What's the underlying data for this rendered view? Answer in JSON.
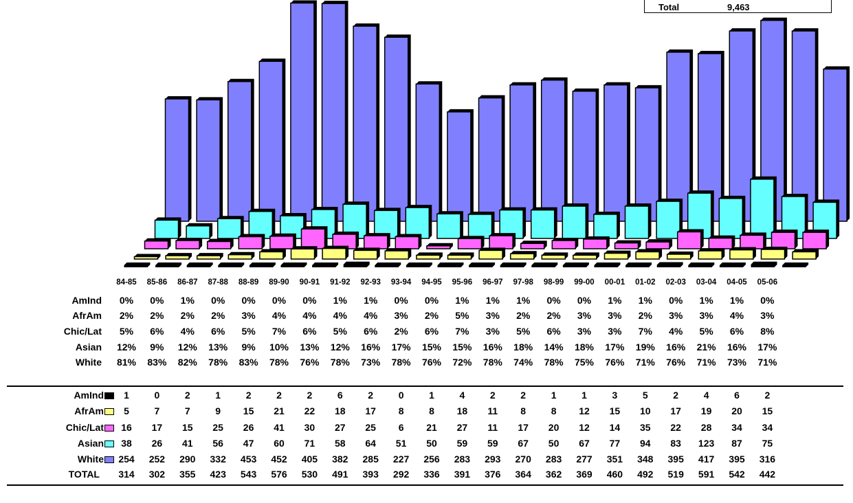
{
  "legend_box": {
    "label": "Total",
    "value": "9,463"
  },
  "colors": {
    "AmInd": "#000000",
    "AfrAm": "#ffff80",
    "Chic/Lat": "#ff66ff",
    "Asian": "#66ffff",
    "White": "#8080ff"
  },
  "chart_data": {
    "type": "bar",
    "categories": [
      "84-85",
      "85-86",
      "86-87",
      "87-88",
      "88-89",
      "89-90",
      "90-91",
      "91-92",
      "92-93",
      "93-94",
      "94-95",
      "95-96",
      "96-97",
      "97-98",
      "98-99",
      "99-00",
      "00-01",
      "01-02",
      "02-03",
      "03-04",
      "04-05",
      "05-06"
    ],
    "series": [
      {
        "name": "AmInd",
        "values": [
          1,
          0,
          2,
          1,
          2,
          2,
          2,
          6,
          2,
          0,
          1,
          4,
          2,
          2,
          1,
          1,
          3,
          5,
          2,
          4,
          6,
          2
        ]
      },
      {
        "name": "AfrAm",
        "values": [
          5,
          7,
          7,
          9,
          15,
          21,
          22,
          18,
          17,
          8,
          8,
          18,
          11,
          8,
          8,
          12,
          15,
          10,
          17,
          19,
          20,
          15
        ]
      },
      {
        "name": "Chic/Lat",
        "values": [
          16,
          17,
          15,
          25,
          26,
          41,
          30,
          27,
          25,
          6,
          21,
          27,
          11,
          17,
          20,
          12,
          14,
          35,
          22,
          28,
          34,
          34
        ]
      },
      {
        "name": "Asian",
        "values": [
          38,
          26,
          41,
          56,
          47,
          60,
          71,
          58,
          64,
          51,
          50,
          59,
          59,
          67,
          50,
          67,
          77,
          94,
          83,
          123,
          87,
          75
        ]
      },
      {
        "name": "White",
        "values": [
          254,
          252,
          290,
          332,
          453,
          452,
          405,
          382,
          285,
          227,
          256,
          283,
          293,
          270,
          283,
          277,
          351,
          348,
          395,
          417,
          395,
          316
        ]
      }
    ],
    "totals": [
      314,
      302,
      355,
      423,
      543,
      576,
      530,
      491,
      393,
      292,
      336,
      391,
      376,
      364,
      362,
      369,
      460,
      492,
      519,
      591,
      542,
      442
    ],
    "type_detail": "3d-depth-bar"
  },
  "percent_table": {
    "rows": [
      {
        "label": "AmInd",
        "values": [
          "0%",
          "0%",
          "1%",
          "0%",
          "0%",
          "0%",
          "0%",
          "1%",
          "1%",
          "0%",
          "0%",
          "1%",
          "1%",
          "1%",
          "0%",
          "0%",
          "1%",
          "1%",
          "0%",
          "1%",
          "1%",
          "0%"
        ]
      },
      {
        "label": "AfrAm",
        "values": [
          "2%",
          "2%",
          "2%",
          "2%",
          "3%",
          "4%",
          "4%",
          "4%",
          "4%",
          "3%",
          "2%",
          "5%",
          "3%",
          "2%",
          "2%",
          "3%",
          "3%",
          "2%",
          "3%",
          "3%",
          "4%",
          "3%"
        ]
      },
      {
        "label": "Chic/Lat",
        "values": [
          "5%",
          "6%",
          "4%",
          "6%",
          "5%",
          "7%",
          "6%",
          "5%",
          "6%",
          "2%",
          "6%",
          "7%",
          "3%",
          "5%",
          "6%",
          "3%",
          "3%",
          "7%",
          "4%",
          "5%",
          "6%",
          "8%"
        ]
      },
      {
        "label": "Asian",
        "values": [
          "12%",
          "9%",
          "12%",
          "13%",
          "9%",
          "10%",
          "13%",
          "12%",
          "16%",
          "17%",
          "15%",
          "15%",
          "16%",
          "18%",
          "14%",
          "18%",
          "17%",
          "19%",
          "16%",
          "21%",
          "16%",
          "17%"
        ]
      },
      {
        "label": "White",
        "values": [
          "81%",
          "83%",
          "82%",
          "78%",
          "83%",
          "78%",
          "76%",
          "78%",
          "73%",
          "78%",
          "76%",
          "72%",
          "78%",
          "74%",
          "78%",
          "75%",
          "76%",
          "71%",
          "76%",
          "71%",
          "73%",
          "71%"
        ]
      }
    ]
  },
  "count_table": {
    "total_label": "TOTAL"
  }
}
